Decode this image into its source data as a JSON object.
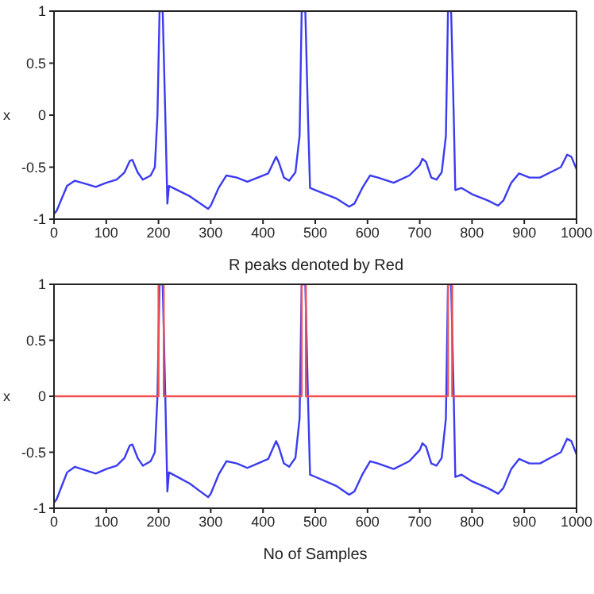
{
  "chart_data": [
    {
      "type": "line",
      "ylabel": "x",
      "xlim": [
        0,
        1000
      ],
      "ylim": [
        -1,
        1
      ],
      "xticks": [
        0,
        100,
        200,
        300,
        400,
        500,
        600,
        700,
        800,
        900,
        1000
      ],
      "yticks": [
        -1,
        -0.5,
        0,
        0.5,
        1
      ],
      "marker": "none",
      "line_style": "solid",
      "series": [
        {
          "color": "#3b3bf0",
          "x": [
            0,
            5,
            15,
            25,
            40,
            60,
            80,
            100,
            120,
            135,
            145,
            150,
            160,
            170,
            185,
            193,
            198,
            202,
            208,
            213,
            217,
            220,
            240,
            260,
            280,
            295,
            300,
            315,
            330,
            350,
            370,
            390,
            410,
            425,
            430,
            440,
            450,
            462,
            470,
            474,
            481,
            486,
            490,
            500,
            520,
            540,
            565,
            575,
            590,
            605,
            620,
            650,
            680,
            700,
            705,
            712,
            722,
            732,
            742,
            750,
            754,
            760,
            765,
            768,
            780,
            800,
            830,
            850,
            860,
            875,
            890,
            910,
            930,
            950,
            970,
            982,
            990,
            1000
          ],
          "values": [
            -0.95,
            -0.92,
            -0.8,
            -0.68,
            -0.63,
            -0.66,
            -0.69,
            -0.65,
            -0.62,
            -0.55,
            -0.44,
            -0.43,
            -0.55,
            -0.62,
            -0.58,
            -0.5,
            0,
            1,
            1,
            0,
            -0.85,
            -0.68,
            -0.73,
            -0.78,
            -0.85,
            -0.9,
            -0.87,
            -0.7,
            -0.58,
            -0.6,
            -0.64,
            -0.6,
            -0.56,
            -0.4,
            -0.45,
            -0.6,
            -0.63,
            -0.55,
            -0.2,
            1,
            1,
            0,
            -0.7,
            -0.72,
            -0.76,
            -0.8,
            -0.88,
            -0.85,
            -0.7,
            -0.58,
            -0.6,
            -0.65,
            -0.58,
            -0.48,
            -0.42,
            -0.45,
            -0.6,
            -0.62,
            -0.55,
            -0.2,
            1,
            1,
            0,
            -0.72,
            -0.7,
            -0.76,
            -0.82,
            -0.87,
            -0.82,
            -0.65,
            -0.56,
            -0.6,
            -0.6,
            -0.55,
            -0.5,
            -0.38,
            -0.4,
            -0.52
          ]
        }
      ]
    },
    {
      "type": "line",
      "title": "R peaks denoted by Red",
      "xlabel": "No of Samples",
      "ylabel": "x",
      "xlim": [
        0,
        1000
      ],
      "ylim": [
        -1,
        1
      ],
      "xticks": [
        0,
        100,
        200,
        300,
        400,
        500,
        600,
        700,
        800,
        900,
        1000
      ],
      "yticks": [
        -1,
        -0.5,
        0,
        0.5,
        1
      ],
      "marker": "none",
      "line_style": "solid",
      "series": [
        {
          "color": "#3b3bf0",
          "x": [
            0,
            5,
            15,
            25,
            40,
            60,
            80,
            100,
            120,
            135,
            145,
            150,
            160,
            170,
            185,
            193,
            198,
            202,
            208,
            213,
            217,
            220,
            240,
            260,
            280,
            295,
            300,
            315,
            330,
            350,
            370,
            390,
            410,
            425,
            430,
            440,
            450,
            462,
            470,
            474,
            481,
            486,
            490,
            500,
            520,
            540,
            565,
            575,
            590,
            605,
            620,
            650,
            680,
            700,
            705,
            712,
            722,
            732,
            742,
            750,
            754,
            760,
            765,
            768,
            780,
            800,
            830,
            850,
            860,
            875,
            890,
            910,
            930,
            950,
            970,
            982,
            990,
            1000
          ],
          "values": [
            -0.95,
            -0.92,
            -0.8,
            -0.68,
            -0.63,
            -0.66,
            -0.69,
            -0.65,
            -0.62,
            -0.55,
            -0.44,
            -0.43,
            -0.55,
            -0.62,
            -0.58,
            -0.5,
            0,
            1,
            1,
            0,
            -0.85,
            -0.68,
            -0.73,
            -0.78,
            -0.85,
            -0.9,
            -0.87,
            -0.7,
            -0.58,
            -0.6,
            -0.64,
            -0.6,
            -0.56,
            -0.4,
            -0.45,
            -0.6,
            -0.63,
            -0.55,
            -0.2,
            1,
            1,
            0,
            -0.7,
            -0.72,
            -0.76,
            -0.8,
            -0.88,
            -0.85,
            -0.7,
            -0.58,
            -0.6,
            -0.65,
            -0.58,
            -0.48,
            -0.42,
            -0.45,
            -0.6,
            -0.62,
            -0.55,
            -0.2,
            1,
            1,
            0,
            -0.72,
            -0.7,
            -0.76,
            -0.82,
            -0.87,
            -0.82,
            -0.65,
            -0.56,
            -0.6,
            -0.6,
            -0.55,
            -0.5,
            -0.38,
            -0.4,
            -0.52
          ]
        },
        {
          "color": "#f05050",
          "x": [
            0,
            200,
            200,
            210,
            210,
            474,
            474,
            482,
            482,
            754,
            754,
            762,
            762,
            1000
          ],
          "values": [
            0,
            0,
            1,
            1,
            0,
            0,
            1,
            1,
            0,
            0,
            1,
            1,
            0,
            0
          ]
        }
      ]
    }
  ]
}
